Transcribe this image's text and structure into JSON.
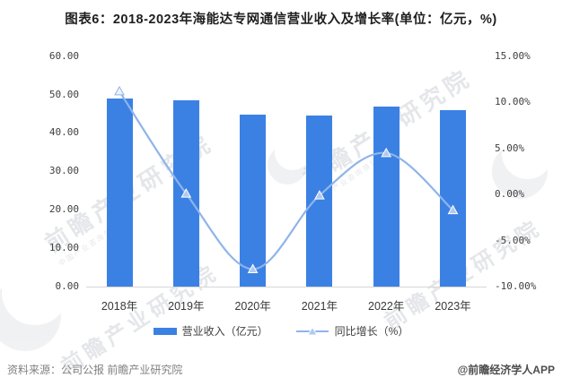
{
  "title": "图表6：2018-2023年海能达专网通信营业收入及增长率(单位：亿元，%)",
  "footer": {
    "source": "资料来源：公司公报 前瞻产业研究院",
    "credit": "@前瞻经济学人APP"
  },
  "watermark": {
    "text": "前瞻产业研究院",
    "subtext": "中国产业咨询领导者"
  },
  "colors": {
    "bar": "#3B81E4",
    "line": "#8FB4EA",
    "marker_fill": "#AFC9F0",
    "axis_text": "#404040",
    "baseline": "#d6d6d6"
  },
  "chart_data": {
    "type": "bar",
    "combo": "bar+line",
    "title": "图表6：2018-2023年海能达专网通信营业收入及增长率(单位：亿元，%)",
    "categories": [
      "2018年",
      "2019年",
      "2020年",
      "2021年",
      "2022年",
      "2023年"
    ],
    "series": [
      {
        "name": "营业收入（亿元）",
        "type": "bar",
        "axis": "left",
        "values": [
          48.9,
          48.5,
          44.8,
          44.5,
          46.9,
          45.9
        ]
      },
      {
        "name": "同比增长（%）",
        "type": "line",
        "axis": "right",
        "values": [
          11.2,
          0.1,
          -8.1,
          -0.1,
          4.5,
          -1.7
        ]
      }
    ],
    "left_axis": {
      "min": 0,
      "max": 60,
      "step": 10,
      "tick_labels": [
        "60.00",
        "50.00",
        "40.00",
        "30.00",
        "20.00",
        "10.00",
        "0.00"
      ]
    },
    "right_axis": {
      "min": -10,
      "max": 15,
      "step": 5,
      "tick_labels": [
        "15.00%",
        "10.00%",
        "5.00%",
        "0.00%",
        "-5.00%",
        "-10.00%"
      ]
    },
    "legend_position": "bottom",
    "gridlines": false
  }
}
